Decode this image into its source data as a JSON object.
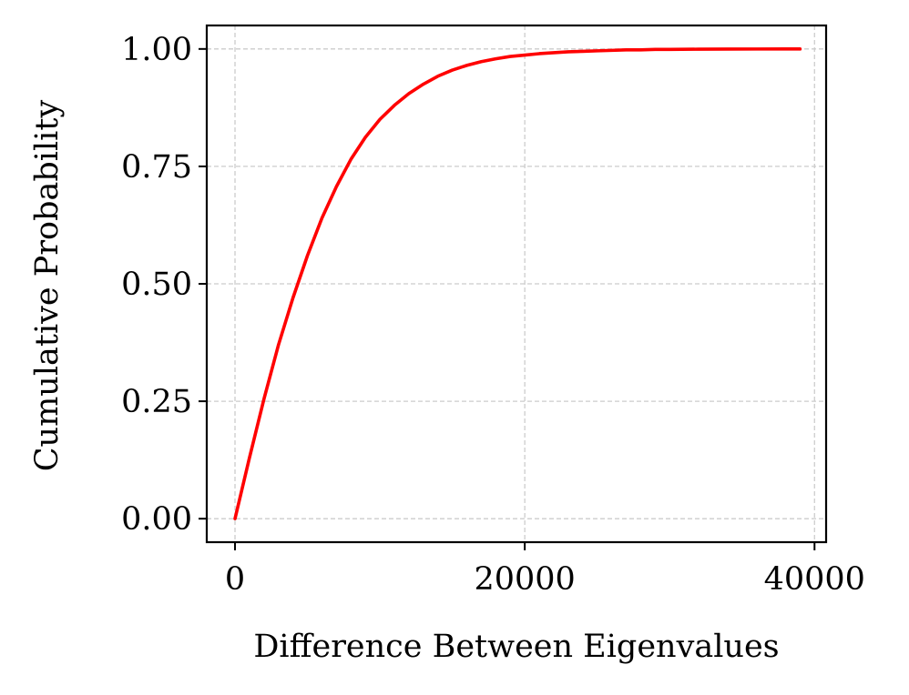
{
  "chart_data": {
    "type": "line",
    "title": "",
    "xlabel": "Difference Between Eigenvalues",
    "ylabel": "Cumulative Probability",
    "xlim": [
      -1950,
      40800
    ],
    "ylim": [
      -0.05,
      1.05
    ],
    "xticks": [
      0,
      20000,
      40000
    ],
    "xtick_labels": [
      "0",
      "20000",
      "40000"
    ],
    "yticks": [
      0.0,
      0.25,
      0.5,
      0.75,
      1.0
    ],
    "ytick_labels": [
      "0.00",
      "0.25",
      "0.50",
      "0.75",
      "1.00"
    ],
    "grid": true,
    "legend": "none",
    "series": [
      {
        "color": "#ff0000",
        "x": [
          0,
          1000,
          2000,
          3000,
          4000,
          5000,
          6000,
          7000,
          8000,
          9000,
          10000,
          11000,
          12000,
          13000,
          14000,
          15000,
          16000,
          17000,
          18000,
          19000,
          20000,
          21000,
          22000,
          23000,
          24000,
          25000,
          26000,
          27000,
          28000,
          29000,
          30000,
          32000,
          34000,
          36000,
          38000,
          39000
        ],
        "y": [
          0.0,
          0.13,
          0.255,
          0.37,
          0.47,
          0.56,
          0.64,
          0.707,
          0.765,
          0.812,
          0.85,
          0.88,
          0.905,
          0.925,
          0.942,
          0.955,
          0.965,
          0.973,
          0.979,
          0.984,
          0.987,
          0.99,
          0.992,
          0.994,
          0.995,
          0.996,
          0.997,
          0.998,
          0.998,
          0.999,
          0.999,
          0.9995,
          0.9998,
          0.9999,
          1.0,
          1.0
        ]
      }
    ]
  }
}
